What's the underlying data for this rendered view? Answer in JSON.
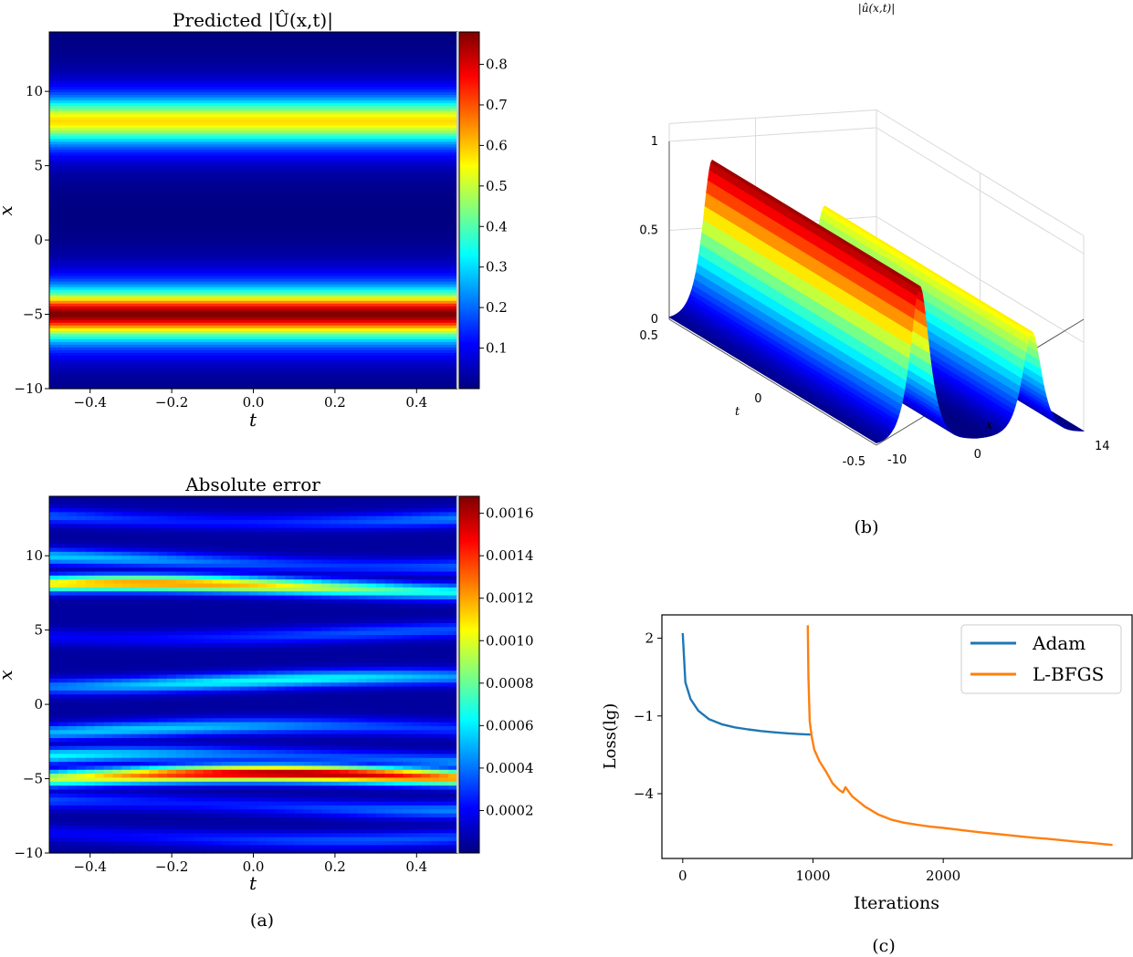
{
  "captions": {
    "a": "(a)",
    "b": "(b)",
    "c": "(c)"
  },
  "chart_data": [
    {
      "id": "heatmap_predicted",
      "type": "heatmap",
      "title": "Predicted |Û(x,t)|",
      "xlabel": "t",
      "ylabel": "x",
      "xlim": [
        -0.5,
        0.5
      ],
      "ylim": [
        -10,
        14
      ],
      "xticks": [
        "−0.4",
        "−0.2",
        "0.0",
        "0.2",
        "0.4"
      ],
      "xtick_values": [
        -0.4,
        -0.2,
        0.0,
        0.2,
        0.4
      ],
      "yticks": [
        "10",
        "5",
        "0",
        "−5",
        "−10"
      ],
      "ytick_values": [
        10,
        5,
        0,
        -5,
        -10
      ],
      "colorbar": {
        "ticks": [
          "0.8",
          "0.7",
          "0.6",
          "0.5",
          "0.4",
          "0.3",
          "0.2",
          "0.1"
        ],
        "tick_values": [
          0.8,
          0.7,
          0.6,
          0.5,
          0.4,
          0.3,
          0.2,
          0.1
        ],
        "range": [
          0.0,
          0.88
        ]
      },
      "bands": [
        {
          "x_center": -5.0,
          "peak": 0.88
        },
        {
          "x_center": 8.0,
          "peak": 0.58
        }
      ],
      "colormap": "jet"
    },
    {
      "id": "heatmap_error",
      "type": "heatmap",
      "title": "Absolute error",
      "xlabel": "t",
      "ylabel": "x",
      "xlim": [
        -0.5,
        0.5
      ],
      "ylim": [
        -10,
        14
      ],
      "xticks": [
        "−0.4",
        "−0.2",
        "0.0",
        "0.2",
        "0.4"
      ],
      "xtick_values": [
        -0.4,
        -0.2,
        0.0,
        0.2,
        0.4
      ],
      "yticks": [
        "10",
        "5",
        "0",
        "−5",
        "−10"
      ],
      "ytick_values": [
        10,
        5,
        0,
        -5,
        -10
      ],
      "colorbar": {
        "ticks": [
          "0.0016",
          "0.0014",
          "0.0012",
          "0.0010",
          "0.0008",
          "0.0006",
          "0.0004",
          "0.0002"
        ],
        "tick_values": [
          0.0016,
          0.0014,
          0.0012,
          0.001,
          0.0008,
          0.0006,
          0.0004,
          0.0002
        ],
        "range": [
          0.0,
          0.00168
        ]
      },
      "error_bands": [
        {
          "x_center": -5.0,
          "peak": 0.0016
        },
        {
          "x_center": 7.8,
          "peak": 0.0012
        },
        {
          "x_center": 9.6,
          "peak": 0.0005
        },
        {
          "x_center": 12.6,
          "peak": 0.0004
        },
        {
          "x_center": 4.8,
          "peak": 0.0003
        },
        {
          "x_center": 1.5,
          "peak": 0.0006
        },
        {
          "x_center": -1.8,
          "peak": 0.0005
        },
        {
          "x_center": -3.7,
          "peak": 0.0006
        },
        {
          "x_center": -6.8,
          "peak": 0.0004
        },
        {
          "x_center": -8.8,
          "peak": 0.0003
        }
      ],
      "colormap": "jet"
    },
    {
      "id": "surface_3d",
      "type": "surface",
      "title": "|û(x,t)|",
      "xlabel": "x",
      "ylabel": "t",
      "zlabel": "",
      "x_range": [
        -10,
        14
      ],
      "t_range": [
        -0.5,
        0.5
      ],
      "z_range": [
        0,
        1
      ],
      "x_ticks": [
        "-10",
        "0",
        "14"
      ],
      "x_tick_values": [
        -10,
        0,
        14
      ],
      "t_ticks": [
        "-0.5",
        "0",
        "0.5"
      ],
      "t_tick_values": [
        -0.5,
        0,
        0.5
      ],
      "z_ticks": [
        "0",
        "0.5",
        "1"
      ],
      "z_tick_values": [
        0,
        0.5,
        1
      ],
      "peaks": [
        {
          "x_center": -5.0,
          "height": 0.88
        },
        {
          "x_center": 8.0,
          "height": 0.58
        }
      ]
    },
    {
      "id": "loss_curve",
      "type": "line",
      "xlabel": "Iterations",
      "ylabel": "Loss(lg)",
      "xlim": [
        -160,
        3450
      ],
      "ylim": [
        -6.5,
        2.9
      ],
      "xticks": [
        "0",
        "1000",
        "2000"
      ],
      "xtick_values": [
        0,
        1000,
        2000
      ],
      "yticks": [
        "2",
        "−1",
        "−4"
      ],
      "ytick_values": [
        2,
        -1,
        -4
      ],
      "legend_position": "top-right",
      "series": [
        {
          "name": "Adam",
          "color": "#1f77b4",
          "x": [
            0,
            20,
            60,
            120,
            200,
            300,
            400,
            500,
            600,
            700,
            800,
            900,
            980
          ],
          "y": [
            2.2,
            0.3,
            -0.35,
            -0.8,
            -1.12,
            -1.32,
            -1.44,
            -1.52,
            -1.58,
            -1.63,
            -1.67,
            -1.7,
            -1.72
          ]
        },
        {
          "name": "L-BFGS",
          "color": "#ff7f0e",
          "x": [
            960,
            965,
            975,
            990,
            1010,
            1050,
            1100,
            1150,
            1200,
            1230,
            1250,
            1300,
            1350,
            1400,
            1500,
            1600,
            1700,
            1800,
            1900,
            2000,
            2100,
            2200,
            2300,
            2400,
            2500,
            2600,
            2700,
            2800,
            2900,
            3000,
            3100,
            3200,
            3300
          ],
          "y": [
            2.5,
            0.5,
            -1.2,
            -1.8,
            -2.3,
            -2.75,
            -3.15,
            -3.6,
            -3.85,
            -3.95,
            -3.75,
            -4.1,
            -4.3,
            -4.5,
            -4.8,
            -5.0,
            -5.12,
            -5.2,
            -5.27,
            -5.32,
            -5.38,
            -5.44,
            -5.5,
            -5.55,
            -5.6,
            -5.65,
            -5.7,
            -5.74,
            -5.79,
            -5.84,
            -5.88,
            -5.93,
            -5.98
          ]
        }
      ]
    }
  ]
}
